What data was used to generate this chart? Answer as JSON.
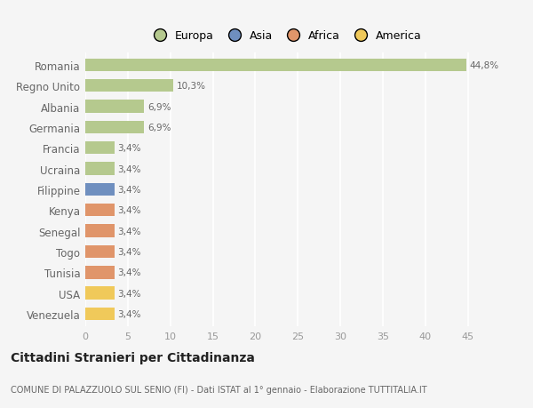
{
  "countries": [
    "Romania",
    "Regno Unito",
    "Albania",
    "Germania",
    "Francia",
    "Ucraina",
    "Filippine",
    "Kenya",
    "Senegal",
    "Togo",
    "Tunisia",
    "USA",
    "Venezuela"
  ],
  "values": [
    44.8,
    10.3,
    6.9,
    6.9,
    3.4,
    3.4,
    3.4,
    3.4,
    3.4,
    3.4,
    3.4,
    3.4,
    3.4
  ],
  "labels": [
    "44,8%",
    "10,3%",
    "6,9%",
    "6,9%",
    "3,4%",
    "3,4%",
    "3,4%",
    "3,4%",
    "3,4%",
    "3,4%",
    "3,4%",
    "3,4%",
    "3,4%"
  ],
  "colors": [
    "#b5c98e",
    "#b5c98e",
    "#b5c98e",
    "#b5c98e",
    "#b5c98e",
    "#b5c98e",
    "#6f8fbf",
    "#e0956a",
    "#e0956a",
    "#e0956a",
    "#e0956a",
    "#f0c95a",
    "#f0c95a"
  ],
  "legend_labels": [
    "Europa",
    "Asia",
    "Africa",
    "America"
  ],
  "legend_colors": [
    "#b5c98e",
    "#6f8fbf",
    "#e0956a",
    "#f0c95a"
  ],
  "xlim": [
    0,
    47
  ],
  "xticks": [
    0,
    5,
    10,
    15,
    20,
    25,
    30,
    35,
    40,
    45
  ],
  "title": "Cittadini Stranieri per Cittadinanza",
  "subtitle": "COMUNE DI PALAZZUOLO SUL SENIO (FI) - Dati ISTAT al 1° gennaio - Elaborazione TUTTITALIA.IT",
  "bg_color": "#f5f5f5",
  "grid_color": "#ffffff",
  "bar_height": 0.62
}
